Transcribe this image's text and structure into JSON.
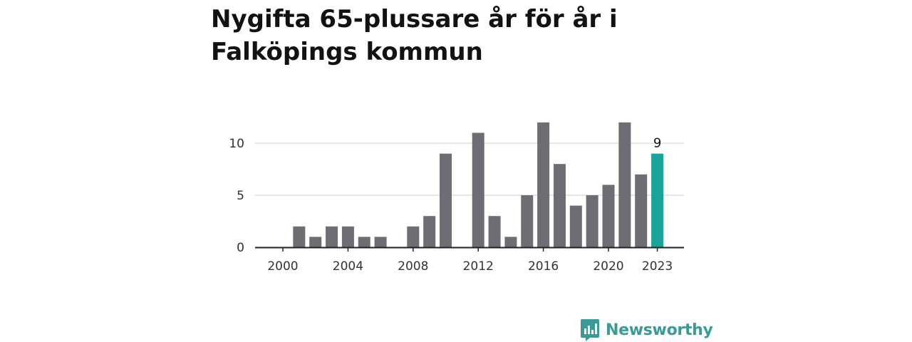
{
  "title": "Nygifta 65-plussare år för år i Falköpings kommun",
  "brand": {
    "name": "Newsworthy",
    "icon": "newsworthy-logo-icon"
  },
  "colors": {
    "bar": "#6e6d73",
    "highlight": "#1aa398",
    "grid": "#dddddd",
    "axis": "#222222",
    "brand": "#3a9a97"
  },
  "chart_data": {
    "type": "bar",
    "title": "Nygifta 65-plussare år för år i Falköpings kommun",
    "xlabel": "",
    "ylabel": "",
    "categories": [
      2000,
      2001,
      2002,
      2003,
      2004,
      2005,
      2006,
      2007,
      2008,
      2009,
      2010,
      2011,
      2012,
      2013,
      2014,
      2015,
      2016,
      2017,
      2018,
      2019,
      2020,
      2021,
      2022,
      2023
    ],
    "values": [
      0,
      2,
      1,
      2,
      2,
      1,
      1,
      0,
      2,
      3,
      9,
      0,
      11,
      3,
      1,
      5,
      12,
      8,
      4,
      5,
      6,
      12,
      7,
      9
    ],
    "highlight": {
      "category": 2023,
      "label": "9"
    },
    "x_ticks": [
      "2000",
      "2004",
      "2008",
      "2012",
      "2016",
      "2020",
      "2023"
    ],
    "y_ticks": [
      "0",
      "5",
      "10"
    ],
    "ylim": [
      0,
      12
    ],
    "grid": true,
    "legend": "none"
  }
}
